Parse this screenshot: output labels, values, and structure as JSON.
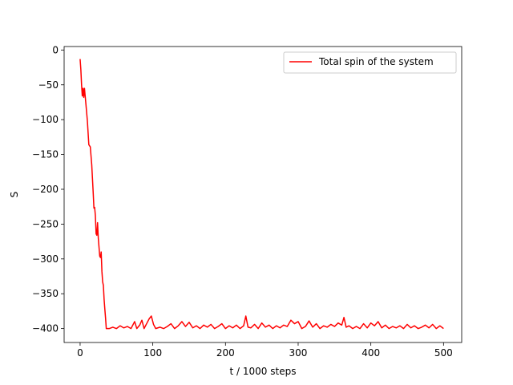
{
  "chart_data": {
    "type": "line",
    "title": "",
    "xlabel": "t / 1000 steps",
    "ylabel": "S",
    "xlim": [
      -22,
      525
    ],
    "ylim": [
      -420,
      5
    ],
    "xticks": [
      0,
      100,
      200,
      300,
      400,
      500
    ],
    "yticks": [
      0,
      -50,
      -100,
      -150,
      -200,
      -250,
      -300,
      -350,
      -400
    ],
    "grid": false,
    "legend_position": "top-right",
    "series": [
      {
        "name": "Total spin of the system",
        "color": "#ff0000",
        "points": [
          [
            0,
            -13
          ],
          [
            1,
            -28
          ],
          [
            2,
            -50
          ],
          [
            3,
            -66
          ],
          [
            4,
            -55
          ],
          [
            5,
            -68
          ],
          [
            6,
            -55
          ],
          [
            8,
            -78
          ],
          [
            10,
            -102
          ],
          [
            12,
            -136
          ],
          [
            14,
            -139
          ],
          [
            16,
            -165
          ],
          [
            18,
            -205
          ],
          [
            19,
            -227
          ],
          [
            20,
            -226
          ],
          [
            21,
            -238
          ],
          [
            22,
            -264
          ],
          [
            23,
            -266
          ],
          [
            24,
            -248
          ],
          [
            25,
            -270
          ],
          [
            27,
            -296
          ],
          [
            28,
            -298
          ],
          [
            29,
            -290
          ],
          [
            30,
            -318
          ],
          [
            31,
            -333
          ],
          [
            32,
            -338
          ],
          [
            33,
            -358
          ],
          [
            34,
            -372
          ],
          [
            35,
            -385
          ],
          [
            36,
            -400
          ],
          [
            40,
            -400
          ],
          [
            45,
            -398
          ],
          [
            50,
            -400
          ],
          [
            55,
            -396
          ],
          [
            60,
            -399
          ],
          [
            65,
            -397
          ],
          [
            70,
            -400
          ],
          [
            75,
            -390
          ],
          [
            78,
            -400
          ],
          [
            82,
            -395
          ],
          [
            85,
            -388
          ],
          [
            88,
            -400
          ],
          [
            92,
            -392
          ],
          [
            95,
            -386
          ],
          [
            98,
            -382
          ],
          [
            101,
            -394
          ],
          [
            104,
            -400
          ],
          [
            110,
            -398
          ],
          [
            115,
            -400
          ],
          [
            120,
            -397
          ],
          [
            125,
            -393
          ],
          [
            130,
            -400
          ],
          [
            135,
            -396
          ],
          [
            140,
            -390
          ],
          [
            145,
            -397
          ],
          [
            150,
            -391
          ],
          [
            155,
            -399
          ],
          [
            160,
            -396
          ],
          [
            165,
            -400
          ],
          [
            170,
            -395
          ],
          [
            175,
            -398
          ],
          [
            180,
            -394
          ],
          [
            185,
            -400
          ],
          [
            190,
            -397
          ],
          [
            195,
            -393
          ],
          [
            200,
            -400
          ],
          [
            205,
            -396
          ],
          [
            210,
            -399
          ],
          [
            215,
            -395
          ],
          [
            220,
            -400
          ],
          [
            225,
            -396
          ],
          [
            228,
            -382
          ],
          [
            231,
            -398
          ],
          [
            235,
            -399
          ],
          [
            240,
            -394
          ],
          [
            245,
            -400
          ],
          [
            250,
            -392
          ],
          [
            255,
            -398
          ],
          [
            260,
            -395
          ],
          [
            265,
            -400
          ],
          [
            270,
            -396
          ],
          [
            275,
            -399
          ],
          [
            280,
            -395
          ],
          [
            285,
            -397
          ],
          [
            290,
            -388
          ],
          [
            295,
            -393
          ],
          [
            300,
            -390
          ],
          [
            305,
            -400
          ],
          [
            310,
            -397
          ],
          [
            315,
            -389
          ],
          [
            320,
            -398
          ],
          [
            325,
            -393
          ],
          [
            330,
            -400
          ],
          [
            335,
            -396
          ],
          [
            340,
            -398
          ],
          [
            345,
            -394
          ],
          [
            350,
            -397
          ],
          [
            355,
            -392
          ],
          [
            360,
            -395
          ],
          [
            363,
            -384
          ],
          [
            366,
            -398
          ],
          [
            370,
            -396
          ],
          [
            375,
            -400
          ],
          [
            380,
            -397
          ],
          [
            385,
            -400
          ],
          [
            390,
            -393
          ],
          [
            395,
            -399
          ],
          [
            400,
            -392
          ],
          [
            405,
            -396
          ],
          [
            410,
            -390
          ],
          [
            415,
            -399
          ],
          [
            420,
            -395
          ],
          [
            425,
            -400
          ],
          [
            430,
            -397
          ],
          [
            435,
            -399
          ],
          [
            440,
            -396
          ],
          [
            445,
            -400
          ],
          [
            450,
            -394
          ],
          [
            455,
            -399
          ],
          [
            460,
            -396
          ],
          [
            465,
            -400
          ],
          [
            470,
            -398
          ],
          [
            475,
            -395
          ],
          [
            480,
            -399
          ],
          [
            485,
            -394
          ],
          [
            490,
            -400
          ],
          [
            495,
            -396
          ],
          [
            500,
            -400
          ]
        ]
      }
    ]
  }
}
